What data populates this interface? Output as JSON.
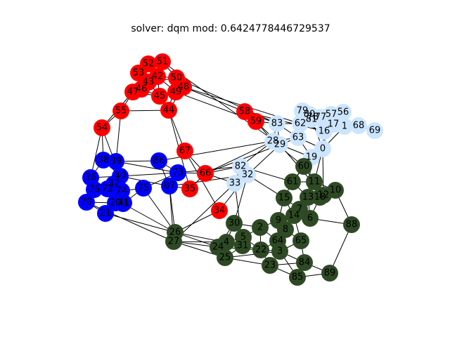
{
  "title": "solver: dqm mod: 0.6424778446729537",
  "colors": {
    "red": "#ff0000",
    "blue": "#0000ff",
    "lightblue": "#cce5ff",
    "green": "#2e4a24"
  },
  "nodes": [
    {
      "id": "0",
      "color": "lightblue"
    },
    {
      "id": "1",
      "color": "lightblue"
    },
    {
      "id": "2",
      "color": "green"
    },
    {
      "id": "3",
      "color": "green"
    },
    {
      "id": "4",
      "color": "green"
    },
    {
      "id": "5",
      "color": "green"
    },
    {
      "id": "6",
      "color": "green"
    },
    {
      "id": "7",
      "color": "green"
    },
    {
      "id": "8",
      "color": "green"
    },
    {
      "id": "9",
      "color": "green"
    },
    {
      "id": "10",
      "color": "green"
    },
    {
      "id": "11",
      "color": "green"
    },
    {
      "id": "12",
      "color": "green"
    },
    {
      "id": "13",
      "color": "green"
    },
    {
      "id": "14",
      "color": "green"
    },
    {
      "id": "15",
      "color": "green"
    },
    {
      "id": "16",
      "color": "lightblue"
    },
    {
      "id": "17",
      "color": "lightblue"
    },
    {
      "id": "18",
      "color": "green"
    },
    {
      "id": "19",
      "color": "lightblue"
    },
    {
      "id": "20",
      "color": "blue"
    },
    {
      "id": "21",
      "color": "blue"
    },
    {
      "id": "22",
      "color": "green"
    },
    {
      "id": "23",
      "color": "green"
    },
    {
      "id": "24",
      "color": "green"
    },
    {
      "id": "25",
      "color": "green"
    },
    {
      "id": "26",
      "color": "green"
    },
    {
      "id": "27",
      "color": "green"
    },
    {
      "id": "28",
      "color": "lightblue"
    },
    {
      "id": "29",
      "color": "lightblue"
    },
    {
      "id": "30",
      "color": "green"
    },
    {
      "id": "31",
      "color": "green"
    },
    {
      "id": "32",
      "color": "lightblue"
    },
    {
      "id": "33",
      "color": "lightblue"
    },
    {
      "id": "34",
      "color": "red"
    },
    {
      "id": "35",
      "color": "red"
    },
    {
      "id": "36",
      "color": "blue"
    },
    {
      "id": "37",
      "color": "blue"
    },
    {
      "id": "38",
      "color": "blue"
    },
    {
      "id": "39",
      "color": "blue"
    },
    {
      "id": "40",
      "color": "blue"
    },
    {
      "id": "41",
      "color": "blue"
    },
    {
      "id": "42",
      "color": "red"
    },
    {
      "id": "43",
      "color": "red"
    },
    {
      "id": "44",
      "color": "red"
    },
    {
      "id": "45",
      "color": "red"
    },
    {
      "id": "46",
      "color": "red"
    },
    {
      "id": "47",
      "color": "red"
    },
    {
      "id": "48",
      "color": "red"
    },
    {
      "id": "49",
      "color": "red"
    },
    {
      "id": "50",
      "color": "red"
    },
    {
      "id": "51",
      "color": "red"
    },
    {
      "id": "52",
      "color": "red"
    },
    {
      "id": "53",
      "color": "red"
    },
    {
      "id": "54",
      "color": "red"
    },
    {
      "id": "55",
      "color": "red"
    },
    {
      "id": "56",
      "color": "lightblue"
    },
    {
      "id": "57",
      "color": "lightblue"
    },
    {
      "id": "58",
      "color": "red"
    },
    {
      "id": "59",
      "color": "red"
    },
    {
      "id": "60",
      "color": "green"
    },
    {
      "id": "61",
      "color": "green"
    },
    {
      "id": "62",
      "color": "lightblue"
    },
    {
      "id": "63",
      "color": "lightblue"
    },
    {
      "id": "64",
      "color": "green"
    },
    {
      "id": "65",
      "color": "green"
    },
    {
      "id": "66",
      "color": "red"
    },
    {
      "id": "67",
      "color": "red"
    },
    {
      "id": "68",
      "color": "lightblue"
    },
    {
      "id": "69",
      "color": "lightblue"
    },
    {
      "id": "70",
      "color": "blue"
    },
    {
      "id": "71",
      "color": "blue"
    },
    {
      "id": "72",
      "color": "blue"
    },
    {
      "id": "73",
      "color": "blue"
    },
    {
      "id": "74",
      "color": "blue"
    },
    {
      "id": "75",
      "color": "blue"
    },
    {
      "id": "76",
      "color": "blue"
    },
    {
      "id": "77",
      "color": "lightblue"
    },
    {
      "id": "78",
      "color": "lightblue"
    },
    {
      "id": "79",
      "color": "lightblue"
    },
    {
      "id": "80",
      "color": "lightblue"
    },
    {
      "id": "81",
      "color": "lightblue"
    },
    {
      "id": "82",
      "color": "lightblue"
    },
    {
      "id": "83",
      "color": "lightblue"
    },
    {
      "id": "84",
      "color": "green"
    },
    {
      "id": "85",
      "color": "green"
    },
    {
      "id": "86",
      "color": "blue"
    },
    {
      "id": "87",
      "color": "blue"
    },
    {
      "id": "88",
      "color": "green"
    },
    {
      "id": "89",
      "color": "green"
    }
  ],
  "edges": [
    [
      "51",
      "52"
    ],
    [
      "51",
      "42"
    ],
    [
      "52",
      "53"
    ],
    [
      "52",
      "42"
    ],
    [
      "53",
      "42"
    ],
    [
      "53",
      "43"
    ],
    [
      "53",
      "46"
    ],
    [
      "42",
      "50"
    ],
    [
      "42",
      "43"
    ],
    [
      "42",
      "45"
    ],
    [
      "42",
      "49"
    ],
    [
      "43",
      "46"
    ],
    [
      "43",
      "45"
    ],
    [
      "43",
      "50"
    ],
    [
      "46",
      "47"
    ],
    [
      "46",
      "45"
    ],
    [
      "47",
      "45"
    ],
    [
      "47",
      "55"
    ],
    [
      "45",
      "49"
    ],
    [
      "45",
      "44"
    ],
    [
      "50",
      "49"
    ],
    [
      "50",
      "48"
    ],
    [
      "49",
      "48"
    ],
    [
      "48",
      "44"
    ],
    [
      "50",
      "44"
    ],
    [
      "51",
      "50"
    ],
    [
      "48",
      "58"
    ],
    [
      "49",
      "59"
    ],
    [
      "50",
      "83"
    ],
    [
      "51",
      "29"
    ],
    [
      "48",
      "62"
    ],
    [
      "55",
      "54"
    ],
    [
      "55",
      "44"
    ],
    [
      "47",
      "54"
    ],
    [
      "54",
      "36"
    ],
    [
      "54",
      "38"
    ],
    [
      "55",
      "39"
    ],
    [
      "54",
      "40"
    ],
    [
      "44",
      "67"
    ],
    [
      "44",
      "35"
    ],
    [
      "67",
      "66"
    ],
    [
      "67",
      "34"
    ],
    [
      "66",
      "35"
    ],
    [
      "66",
      "73"
    ],
    [
      "66",
      "82"
    ],
    [
      "66",
      "33"
    ],
    [
      "66",
      "28"
    ],
    [
      "35",
      "87"
    ],
    [
      "34",
      "32"
    ],
    [
      "34",
      "26"
    ],
    [
      "58",
      "59"
    ],
    [
      "58",
      "83"
    ],
    [
      "59",
      "83"
    ],
    [
      "59",
      "28"
    ],
    [
      "59",
      "29"
    ],
    [
      "58",
      "16"
    ],
    [
      "83",
      "62"
    ],
    [
      "83",
      "63"
    ],
    [
      "83",
      "28"
    ],
    [
      "83",
      "29"
    ],
    [
      "28",
      "29"
    ],
    [
      "28",
      "63"
    ],
    [
      "29",
      "63"
    ],
    [
      "63",
      "62"
    ],
    [
      "62",
      "81"
    ],
    [
      "62",
      "16"
    ],
    [
      "81",
      "80"
    ],
    [
      "80",
      "79"
    ],
    [
      "79",
      "78"
    ],
    [
      "78",
      "77"
    ],
    [
      "77",
      "57"
    ],
    [
      "57",
      "56"
    ],
    [
      "56",
      "1"
    ],
    [
      "1",
      "68"
    ],
    [
      "68",
      "69"
    ],
    [
      "16",
      "0"
    ],
    [
      "0",
      "19"
    ],
    [
      "19",
      "29"
    ],
    [
      "0",
      "63"
    ],
    [
      "17",
      "16"
    ],
    [
      "17",
      "62"
    ],
    [
      "17",
      "1"
    ],
    [
      "0",
      "1"
    ],
    [
      "0",
      "57"
    ],
    [
      "16",
      "78"
    ],
    [
      "79",
      "63"
    ],
    [
      "81",
      "63"
    ],
    [
      "80",
      "17"
    ],
    [
      "0",
      "81"
    ],
    [
      "19",
      "60"
    ],
    [
      "19",
      "61"
    ],
    [
      "0",
      "11"
    ],
    [
      "0",
      "60"
    ],
    [
      "63",
      "19"
    ],
    [
      "28",
      "82"
    ],
    [
      "29",
      "32"
    ],
    [
      "82",
      "32"
    ],
    [
      "32",
      "33"
    ],
    [
      "82",
      "33"
    ],
    [
      "32",
      "30"
    ],
    [
      "33",
      "31"
    ],
    [
      "82",
      "73"
    ],
    [
      "32",
      "87"
    ],
    [
      "28",
      "86"
    ],
    [
      "29",
      "66"
    ],
    [
      "33",
      "27"
    ],
    [
      "82",
      "61"
    ],
    [
      "32",
      "15"
    ],
    [
      "28",
      "60"
    ],
    [
      "29",
      "12"
    ],
    [
      "38",
      "39"
    ],
    [
      "38",
      "36"
    ],
    [
      "38",
      "40"
    ],
    [
      "39",
      "40"
    ],
    [
      "39",
      "86"
    ],
    [
      "36",
      "76"
    ],
    [
      "36",
      "40"
    ],
    [
      "40",
      "76"
    ],
    [
      "40",
      "72"
    ],
    [
      "40",
      "74"
    ],
    [
      "76",
      "72"
    ],
    [
      "76",
      "70"
    ],
    [
      "72",
      "20"
    ],
    [
      "72",
      "74"
    ],
    [
      "74",
      "71"
    ],
    [
      "20",
      "71"
    ],
    [
      "20",
      "21"
    ],
    [
      "70",
      "21"
    ],
    [
      "71",
      "75"
    ],
    [
      "74",
      "75"
    ],
    [
      "75",
      "73"
    ],
    [
      "73",
      "87"
    ],
    [
      "73",
      "86"
    ],
    [
      "86",
      "87"
    ],
    [
      "40",
      "87"
    ],
    [
      "40",
      "73"
    ],
    [
      "39",
      "73"
    ],
    [
      "76",
      "74"
    ],
    [
      "20",
      "74"
    ],
    [
      "70",
      "20"
    ],
    [
      "21",
      "71"
    ],
    [
      "36",
      "72"
    ],
    [
      "71",
      "26"
    ],
    [
      "70",
      "27"
    ],
    [
      "21",
      "26"
    ],
    [
      "75",
      "26"
    ],
    [
      "87",
      "26"
    ],
    [
      "87",
      "27"
    ],
    [
      "26",
      "27"
    ],
    [
      "26",
      "24"
    ],
    [
      "26",
      "31"
    ],
    [
      "27",
      "25"
    ],
    [
      "27",
      "24"
    ],
    [
      "24",
      "4"
    ],
    [
      "24",
      "25"
    ],
    [
      "4",
      "5"
    ],
    [
      "4",
      "31"
    ],
    [
      "5",
      "31"
    ],
    [
      "5",
      "22"
    ],
    [
      "31",
      "22"
    ],
    [
      "22",
      "23"
    ],
    [
      "22",
      "3"
    ],
    [
      "3",
      "23"
    ],
    [
      "3",
      "64"
    ],
    [
      "64",
      "9"
    ],
    [
      "64",
      "8"
    ],
    [
      "64",
      "2"
    ],
    [
      "2",
      "30"
    ],
    [
      "30",
      "5"
    ],
    [
      "2",
      "9"
    ],
    [
      "9",
      "8"
    ],
    [
      "8",
      "14"
    ],
    [
      "14",
      "7"
    ],
    [
      "7",
      "13"
    ],
    [
      "13",
      "12"
    ],
    [
      "12",
      "18"
    ],
    [
      "18",
      "10"
    ],
    [
      "10",
      "11"
    ],
    [
      "11",
      "61"
    ],
    [
      "61",
      "60"
    ],
    [
      "60",
      "11"
    ],
    [
      "13",
      "11"
    ],
    [
      "15",
      "14"
    ],
    [
      "15",
      "9"
    ],
    [
      "15",
      "61"
    ],
    [
      "12",
      "7"
    ],
    [
      "7",
      "6"
    ],
    [
      "6",
      "14"
    ],
    [
      "14",
      "65"
    ],
    [
      "65",
      "3"
    ],
    [
      "65",
      "84"
    ],
    [
      "84",
      "23"
    ],
    [
      "84",
      "85"
    ],
    [
      "85",
      "89"
    ],
    [
      "89",
      "88"
    ],
    [
      "88",
      "10"
    ],
    [
      "23",
      "85"
    ],
    [
      "3",
      "84"
    ],
    [
      "84",
      "89"
    ],
    [
      "25",
      "23"
    ],
    [
      "25",
      "3"
    ],
    [
      "24",
      "22"
    ],
    [
      "2",
      "22"
    ],
    [
      "30",
      "24"
    ],
    [
      "30",
      "4"
    ],
    [
      "5",
      "2"
    ],
    [
      "8",
      "65"
    ],
    [
      "13",
      "6"
    ],
    [
      "18",
      "6"
    ],
    [
      "12",
      "10"
    ],
    [
      "9",
      "14"
    ],
    [
      "64",
      "22"
    ],
    [
      "15",
      "7"
    ],
    [
      "61",
      "13"
    ],
    [
      "60",
      "12"
    ],
    [
      "0",
      "12"
    ],
    [
      "19",
      "13"
    ],
    [
      "88",
      "6"
    ],
    [
      "4",
      "25"
    ],
    [
      "31",
      "25"
    ],
    [
      "27",
      "4"
    ],
    [
      "85",
      "3"
    ]
  ]
}
